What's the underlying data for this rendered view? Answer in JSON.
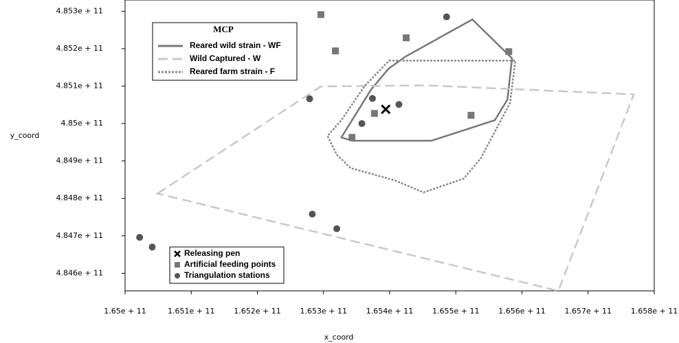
{
  "chart_data": {
    "type": "scatter",
    "x_label": "x_coord",
    "y_label": "y_coord",
    "mcp_legend_title": "MCP",
    "xlim": [
      165000000000,
      165800000000
    ],
    "ylim": [
      484553000000,
      485330000000
    ],
    "xticks": [
      {
        "value": 165000000000,
        "label": "1.65e + 11"
      },
      {
        "value": 165100000000,
        "label": "1.651e + 11"
      },
      {
        "value": 165200000000,
        "label": "1.652e + 11"
      },
      {
        "value": 165300000000,
        "label": "1.653e + 11"
      },
      {
        "value": 165400000000,
        "label": "1.654e + 11"
      },
      {
        "value": 165500000000,
        "label": "1.655e + 11"
      },
      {
        "value": 165600000000,
        "label": "1.656e + 11"
      },
      {
        "value": 165700000000,
        "label": "1.657e + 11"
      },
      {
        "value": 165800000000,
        "label": "1.658e + 11"
      }
    ],
    "yticks": [
      {
        "value": 484600000000,
        "label": "4.846e + 11"
      },
      {
        "value": 484700000000,
        "label": "4.847e + 11"
      },
      {
        "value": 484800000000,
        "label": "4.848e + 11"
      },
      {
        "value": 484900000000,
        "label": "4.849e + 11"
      },
      {
        "value": 485000000000,
        "label": "4.85e + 11"
      },
      {
        "value": 485100000000,
        "label": "4.851e + 11"
      },
      {
        "value": 485200000000,
        "label": "4.852e + 11"
      },
      {
        "value": 485300000000,
        "label": "4.853e + 11"
      }
    ],
    "series": [
      {
        "name": "Reared wild strain - WF",
        "kind": "polygon",
        "style": "solid",
        "color": "#777777",
        "x": [
          165525000000,
          165585000000,
          165578000000,
          165559000000,
          165463000000,
          165343000000,
          165327000000,
          165372000000,
          165398000000,
          165424000000
        ],
        "y": [
          485278000000,
          485174000000,
          485064000000,
          485009000000,
          484954000000,
          484954000000,
          484963000000,
          485091000000,
          485146000000,
          485179000000
        ]
      },
      {
        "name": "Wild Captured - W",
        "kind": "polygon",
        "style": "dashed",
        "color": "#c8c8c8",
        "x": [
          165049000000,
          165296000000,
          165455000000,
          165769000000,
          165655000000
        ],
        "y": [
          484813000000,
          485099000000,
          485102000000,
          485078000000,
          484553000000
        ]
      },
      {
        "name": "Reared farm strain - F",
        "kind": "polygon",
        "style": "dotted",
        "color": "#888888",
        "x": [
          165399000000,
          165590000000,
          165582000000,
          165538000000,
          165512000000,
          165451000000,
          165408000000,
          165341000000,
          165320000000,
          165306000000,
          165327000000,
          165362000000
        ],
        "y": [
          485168000000,
          485168000000,
          485055000000,
          484908000000,
          484853000000,
          484816000000,
          484848000000,
          484881000000,
          484917000000,
          484967000000,
          485009000000,
          485100000000
        ]
      },
      {
        "name": "Releasing pen",
        "kind": "points",
        "marker": "x",
        "color": "#000000",
        "x": [
          165394000000
        ],
        "y": [
          485038000000
        ]
      },
      {
        "name": "Artificial feeding points",
        "kind": "points",
        "marker": "square",
        "color": "#777777",
        "x": [
          165296000000,
          165318000000,
          165425000000,
          165580000000,
          165377000000,
          165343000000,
          165523000000
        ],
        "y": [
          485291000000,
          485194000000,
          485229000000,
          485192000000,
          485027000000,
          484963000000,
          485022000000
        ]
      },
      {
        "name": "Triangulation stations",
        "kind": "points",
        "marker": "circle",
        "color": "#555555",
        "x": [
          165486000000,
          165374000000,
          165279000000,
          165414000000,
          165358000000,
          165283000000,
          165320000000,
          165022000000,
          165041000000
        ],
        "y": [
          485285000000,
          485067000000,
          485066000000,
          485051000000,
          485000000000,
          484758000000,
          484719000000,
          484696000000,
          484670000000
        ]
      }
    ]
  }
}
